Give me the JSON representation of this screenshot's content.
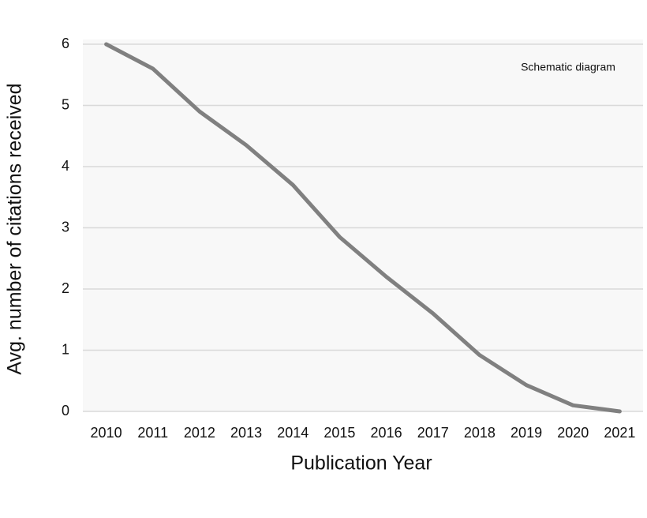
{
  "chart_data": {
    "type": "line",
    "annotation": "Schematic diagram",
    "xlabel": "Publication Year",
    "ylabel": "Avg. number of citations received",
    "categories": [
      "2010",
      "2011",
      "2012",
      "2013",
      "2014",
      "2015",
      "2016",
      "2017",
      "2018",
      "2019",
      "2020",
      "2021"
    ],
    "values": [
      6.0,
      5.6,
      4.9,
      4.35,
      3.7,
      2.85,
      2.2,
      1.6,
      0.92,
      0.43,
      0.1,
      0
    ],
    "color": "#808080",
    "ylim": [
      0,
      6
    ],
    "yticks": [
      0,
      1,
      2,
      3,
      4,
      5,
      6
    ],
    "grid": true
  }
}
